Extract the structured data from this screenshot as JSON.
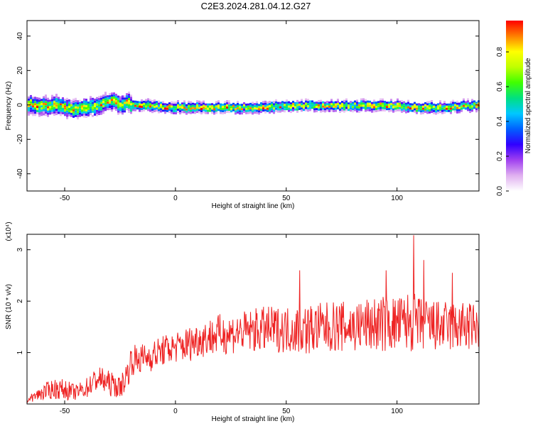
{
  "figure_title": "C2E3.2024.281.04.12.G27",
  "chart_data": [
    {
      "type": "heatmap",
      "xlabel": "Height of straight line (km)",
      "ylabel": "Frequency (Hz)",
      "xlim": [
        -67,
        137
      ],
      "ylim": [
        -50,
        49
      ],
      "xticks": [
        -50,
        0,
        50,
        100
      ],
      "yticks": [
        -40,
        -20,
        0,
        20,
        40
      ],
      "colorbar": {
        "label": "Normalized spectral amplitude",
        "range": [
          0,
          0.98
        ],
        "ticks": [
          "0.0",
          "0.2",
          "0.4",
          "0.6",
          "0.8"
        ],
        "colormap": [
          "#ffffff",
          "#e0b0f0",
          "#a040f0",
          "#3000ff",
          "#0060ff",
          "#00c8ff",
          "#00e080",
          "#40ff00",
          "#c0ff00",
          "#ffff00",
          "#ff8000",
          "#ff0000"
        ]
      },
      "ridge": {
        "x": [
          -67,
          -60,
          -55,
          -50,
          -45,
          -40,
          -35,
          -30,
          -25,
          -22,
          -20,
          -15,
          -10,
          -5,
          0,
          5,
          10,
          20,
          30,
          40,
          50,
          60,
          70,
          80,
          90,
          100,
          110,
          120,
          130,
          137
        ],
        "center_hz": [
          1,
          0,
          0.5,
          -1,
          -2,
          -1,
          0,
          3,
          1,
          2,
          0,
          0,
          0,
          -1,
          -1,
          -1,
          -1,
          -1,
          -1,
          -1,
          0,
          0,
          0,
          0,
          0,
          0,
          -1,
          -1,
          0,
          0
        ]
      }
    },
    {
      "type": "line",
      "xlabel": "Height of straight line (km)",
      "ylabel": "SNR (10 * v/v)",
      "y_multiplier": "(x10⁴)",
      "xlim": [
        -67,
        137
      ],
      "ylim": [
        0,
        3.3
      ],
      "xticks": [
        -50,
        0,
        50,
        100
      ],
      "yticks": [
        1,
        2,
        3
      ],
      "series": [
        {
          "color": "#ee2222",
          "x": [
            -67,
            -60,
            -55,
            -50,
            -45,
            -40,
            -35,
            -30,
            -25,
            -22,
            -20,
            -15,
            -10,
            -5,
            0,
            5,
            10,
            20,
            30,
            40,
            50,
            60,
            70,
            80,
            90,
            100,
            106,
            110,
            120,
            130,
            137
          ],
          "mean": [
            0.08,
            0.22,
            0.3,
            0.28,
            0.22,
            0.32,
            0.5,
            0.4,
            0.32,
            0.55,
            0.85,
            0.88,
            0.95,
            1.05,
            1.1,
            1.15,
            1.25,
            1.35,
            1.4,
            1.45,
            1.45,
            1.45,
            1.5,
            1.5,
            1.55,
            1.55,
            1.6,
            1.55,
            1.5,
            1.5,
            1.5
          ],
          "spread": [
            0.05,
            0.15,
            0.2,
            0.2,
            0.15,
            0.2,
            0.25,
            0.25,
            0.2,
            0.3,
            0.3,
            0.3,
            0.3,
            0.3,
            0.3,
            0.35,
            0.35,
            0.4,
            0.4,
            0.45,
            0.45,
            0.5,
            0.5,
            0.5,
            0.55,
            0.55,
            0.6,
            0.55,
            0.5,
            0.5,
            0.45
          ],
          "peaks": [
            {
              "x": 107.5,
              "y": 3.28
            },
            {
              "x": 112,
              "y": 2.8
            },
            {
              "x": 125,
              "y": 2.55
            },
            {
              "x": 56,
              "y": 2.6
            },
            {
              "x": 95,
              "y": 2.6
            }
          ]
        }
      ]
    }
  ]
}
